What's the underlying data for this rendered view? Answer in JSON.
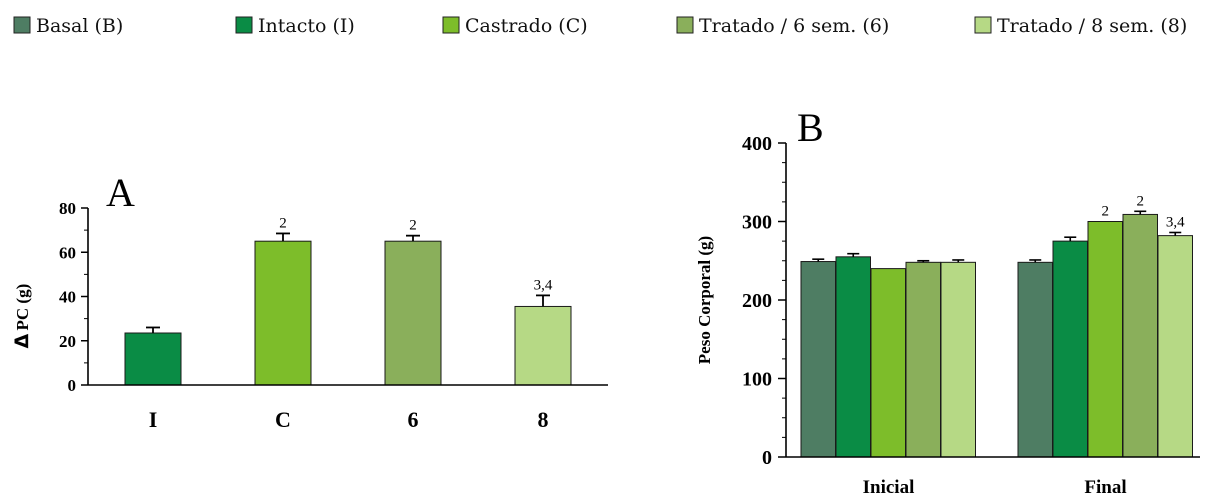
{
  "legend": [
    {
      "label": "Basal (B)",
      "color": "#4e7d63"
    },
    {
      "label": "Intacto (I)",
      "color": "#0a8c45"
    },
    {
      "label": "Castrado (C)",
      "color": "#7dbd2a"
    },
    {
      "label": "Tratado / 6 sem. (6)",
      "color": "#8aaf5b"
    },
    {
      "label": "Tratado / 8 sem. (8)",
      "color": "#b6d985"
    }
  ],
  "chart_data": [
    {
      "type": "bar",
      "panel": "A",
      "ylabel_symbol": "Δ",
      "ylabel": "PC (g)",
      "xlabel": "",
      "ylim": [
        0,
        80
      ],
      "yticks": [
        "0",
        "20",
        "40",
        "60",
        "80"
      ],
      "categories": [
        "I",
        "C",
        "6",
        "8"
      ],
      "colors": [
        "#0a8c45",
        "#7dbd2a",
        "#8aaf5b",
        "#b6d985"
      ],
      "values": [
        23.5,
        65,
        65,
        35.5
      ],
      "errors": [
        2.5,
        3.5,
        2.5,
        5.0
      ],
      "annotations": [
        "",
        "2",
        "2",
        "3,4"
      ]
    },
    {
      "type": "bar",
      "panel": "B",
      "ylabel": "Peso Corporal (g)",
      "xlabel": "",
      "ylim": [
        0,
        400
      ],
      "yticks": [
        "0",
        "100",
        "200",
        "300",
        "400"
      ],
      "categories": [
        "Inicial",
        "Final"
      ],
      "series": [
        {
          "name": "Basal (B)",
          "color": "#4e7d63",
          "values": [
            249,
            248
          ],
          "errors": [
            3,
            3
          ],
          "annotations": [
            "",
            ""
          ]
        },
        {
          "name": "Intacto (I)",
          "color": "#0a8c45",
          "values": [
            255,
            275
          ],
          "errors": [
            4,
            5
          ],
          "annotations": [
            "",
            ""
          ]
        },
        {
          "name": "Castrado (C)",
          "color": "#7dbd2a",
          "values": [
            240,
            300
          ],
          "errors": [
            0,
            0
          ],
          "annotations": [
            "",
            "2"
          ]
        },
        {
          "name": "Tratado / 6 sem. (6)",
          "color": "#8aaf5b",
          "values": [
            248,
            309
          ],
          "errors": [
            2,
            4
          ],
          "annotations": [
            "",
            "2"
          ]
        },
        {
          "name": "Tratado / 8 sem. (8)",
          "color": "#b6d985",
          "values": [
            248,
            282
          ],
          "errors": [
            3,
            4
          ],
          "annotations": [
            "",
            "3,4"
          ]
        }
      ]
    }
  ]
}
